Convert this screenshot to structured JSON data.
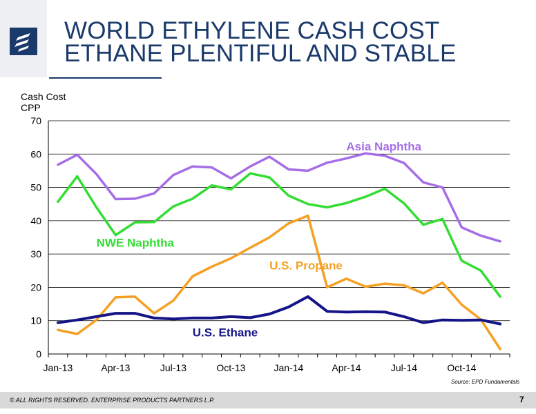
{
  "header": {
    "title_line1": "WORLD ETHYLENE CASH COST",
    "title_line2": "ETHANE PLENTIFUL AND STABLE"
  },
  "footer": {
    "source": "Source:  EPD Fundamentals",
    "copyright": "© ALL RIGHTS RESERVED. ENTERPRISE PRODUCTS PARTNERS L.P.",
    "page_number": "7"
  },
  "colors": {
    "brand_navy": "#1a3a6b",
    "asia_naphtha": "#a66ee6",
    "nwe_naphtha": "#33dd33",
    "us_propane": "#f5a023",
    "us_ethane": "#141487"
  },
  "chart_data": {
    "type": "line",
    "title": "",
    "xlabel": "",
    "ylabel_line1": "Cash Cost",
    "ylabel_line2": "CPP",
    "ylim": [
      0,
      70
    ],
    "yticks": [
      0,
      10,
      20,
      30,
      40,
      50,
      60,
      70
    ],
    "grid": "horizontal",
    "x": [
      "Jan-13",
      "Feb-13",
      "Mar-13",
      "Apr-13",
      "May-13",
      "Jun-13",
      "Jul-13",
      "Aug-13",
      "Sep-13",
      "Oct-13",
      "Nov-13",
      "Dec-13",
      "Jan-14",
      "Feb-14",
      "Mar-14",
      "Apr-14",
      "May-14",
      "Jun-14",
      "Jul-14",
      "Aug-14",
      "Sep-14",
      "Oct-14",
      "Nov-14",
      "Dec-14"
    ],
    "xtick_labels": [
      "Jan-13",
      "Apr-13",
      "Jul-13",
      "Oct-13",
      "Jan-14",
      "Apr-14",
      "Jul-14",
      "Oct-14"
    ],
    "series": [
      {
        "name": "Asia Naphtha",
        "color": "#a66ee6",
        "label_anchor": "Apr-14",
        "label_value": 62.3,
        "values": [
          56.8,
          59.8,
          54.0,
          46.5,
          46.6,
          48.2,
          53.7,
          56.3,
          56.0,
          52.7,
          56.3,
          59.2,
          55.4,
          55.0,
          57.4,
          58.7,
          60.2,
          59.5,
          57.3,
          51.5,
          50.0,
          38.0,
          35.5,
          33.8
        ]
      },
      {
        "name": "NWE Naphtha",
        "color": "#33dd33",
        "label_anchor": "Mar-13",
        "label_value": 33.4,
        "values": [
          45.7,
          53.3,
          44.0,
          35.7,
          39.5,
          39.6,
          44.3,
          46.6,
          50.6,
          49.4,
          54.2,
          53.0,
          47.5,
          45.0,
          44.0,
          45.3,
          47.2,
          49.6,
          45.2,
          38.8,
          40.5,
          28.0,
          25.0,
          17.2
        ]
      },
      {
        "name": "U.S. Propane",
        "color": "#f5a023",
        "label_anchor": "Dec-13",
        "label_value": 26.6,
        "values": [
          7.2,
          6.0,
          10.2,
          17.0,
          17.2,
          12.2,
          16.0,
          23.3,
          26.2,
          28.7,
          31.9,
          35.0,
          39.2,
          41.5,
          20.0,
          22.6,
          20.2,
          21.1,
          20.6,
          18.2,
          21.4,
          14.8,
          10.3,
          1.5
        ]
      },
      {
        "name": "U.S. Ethane",
        "color": "#141487",
        "label_anchor": "Aug-13",
        "label_value": 6.5,
        "values": [
          9.4,
          10.2,
          11.2,
          12.2,
          12.2,
          10.8,
          10.5,
          10.8,
          10.8,
          11.2,
          10.9,
          12.0,
          14.1,
          17.2,
          12.8,
          12.6,
          12.7,
          12.6,
          11.2,
          9.4,
          10.2,
          10.1,
          10.2,
          9.0
        ]
      }
    ]
  }
}
